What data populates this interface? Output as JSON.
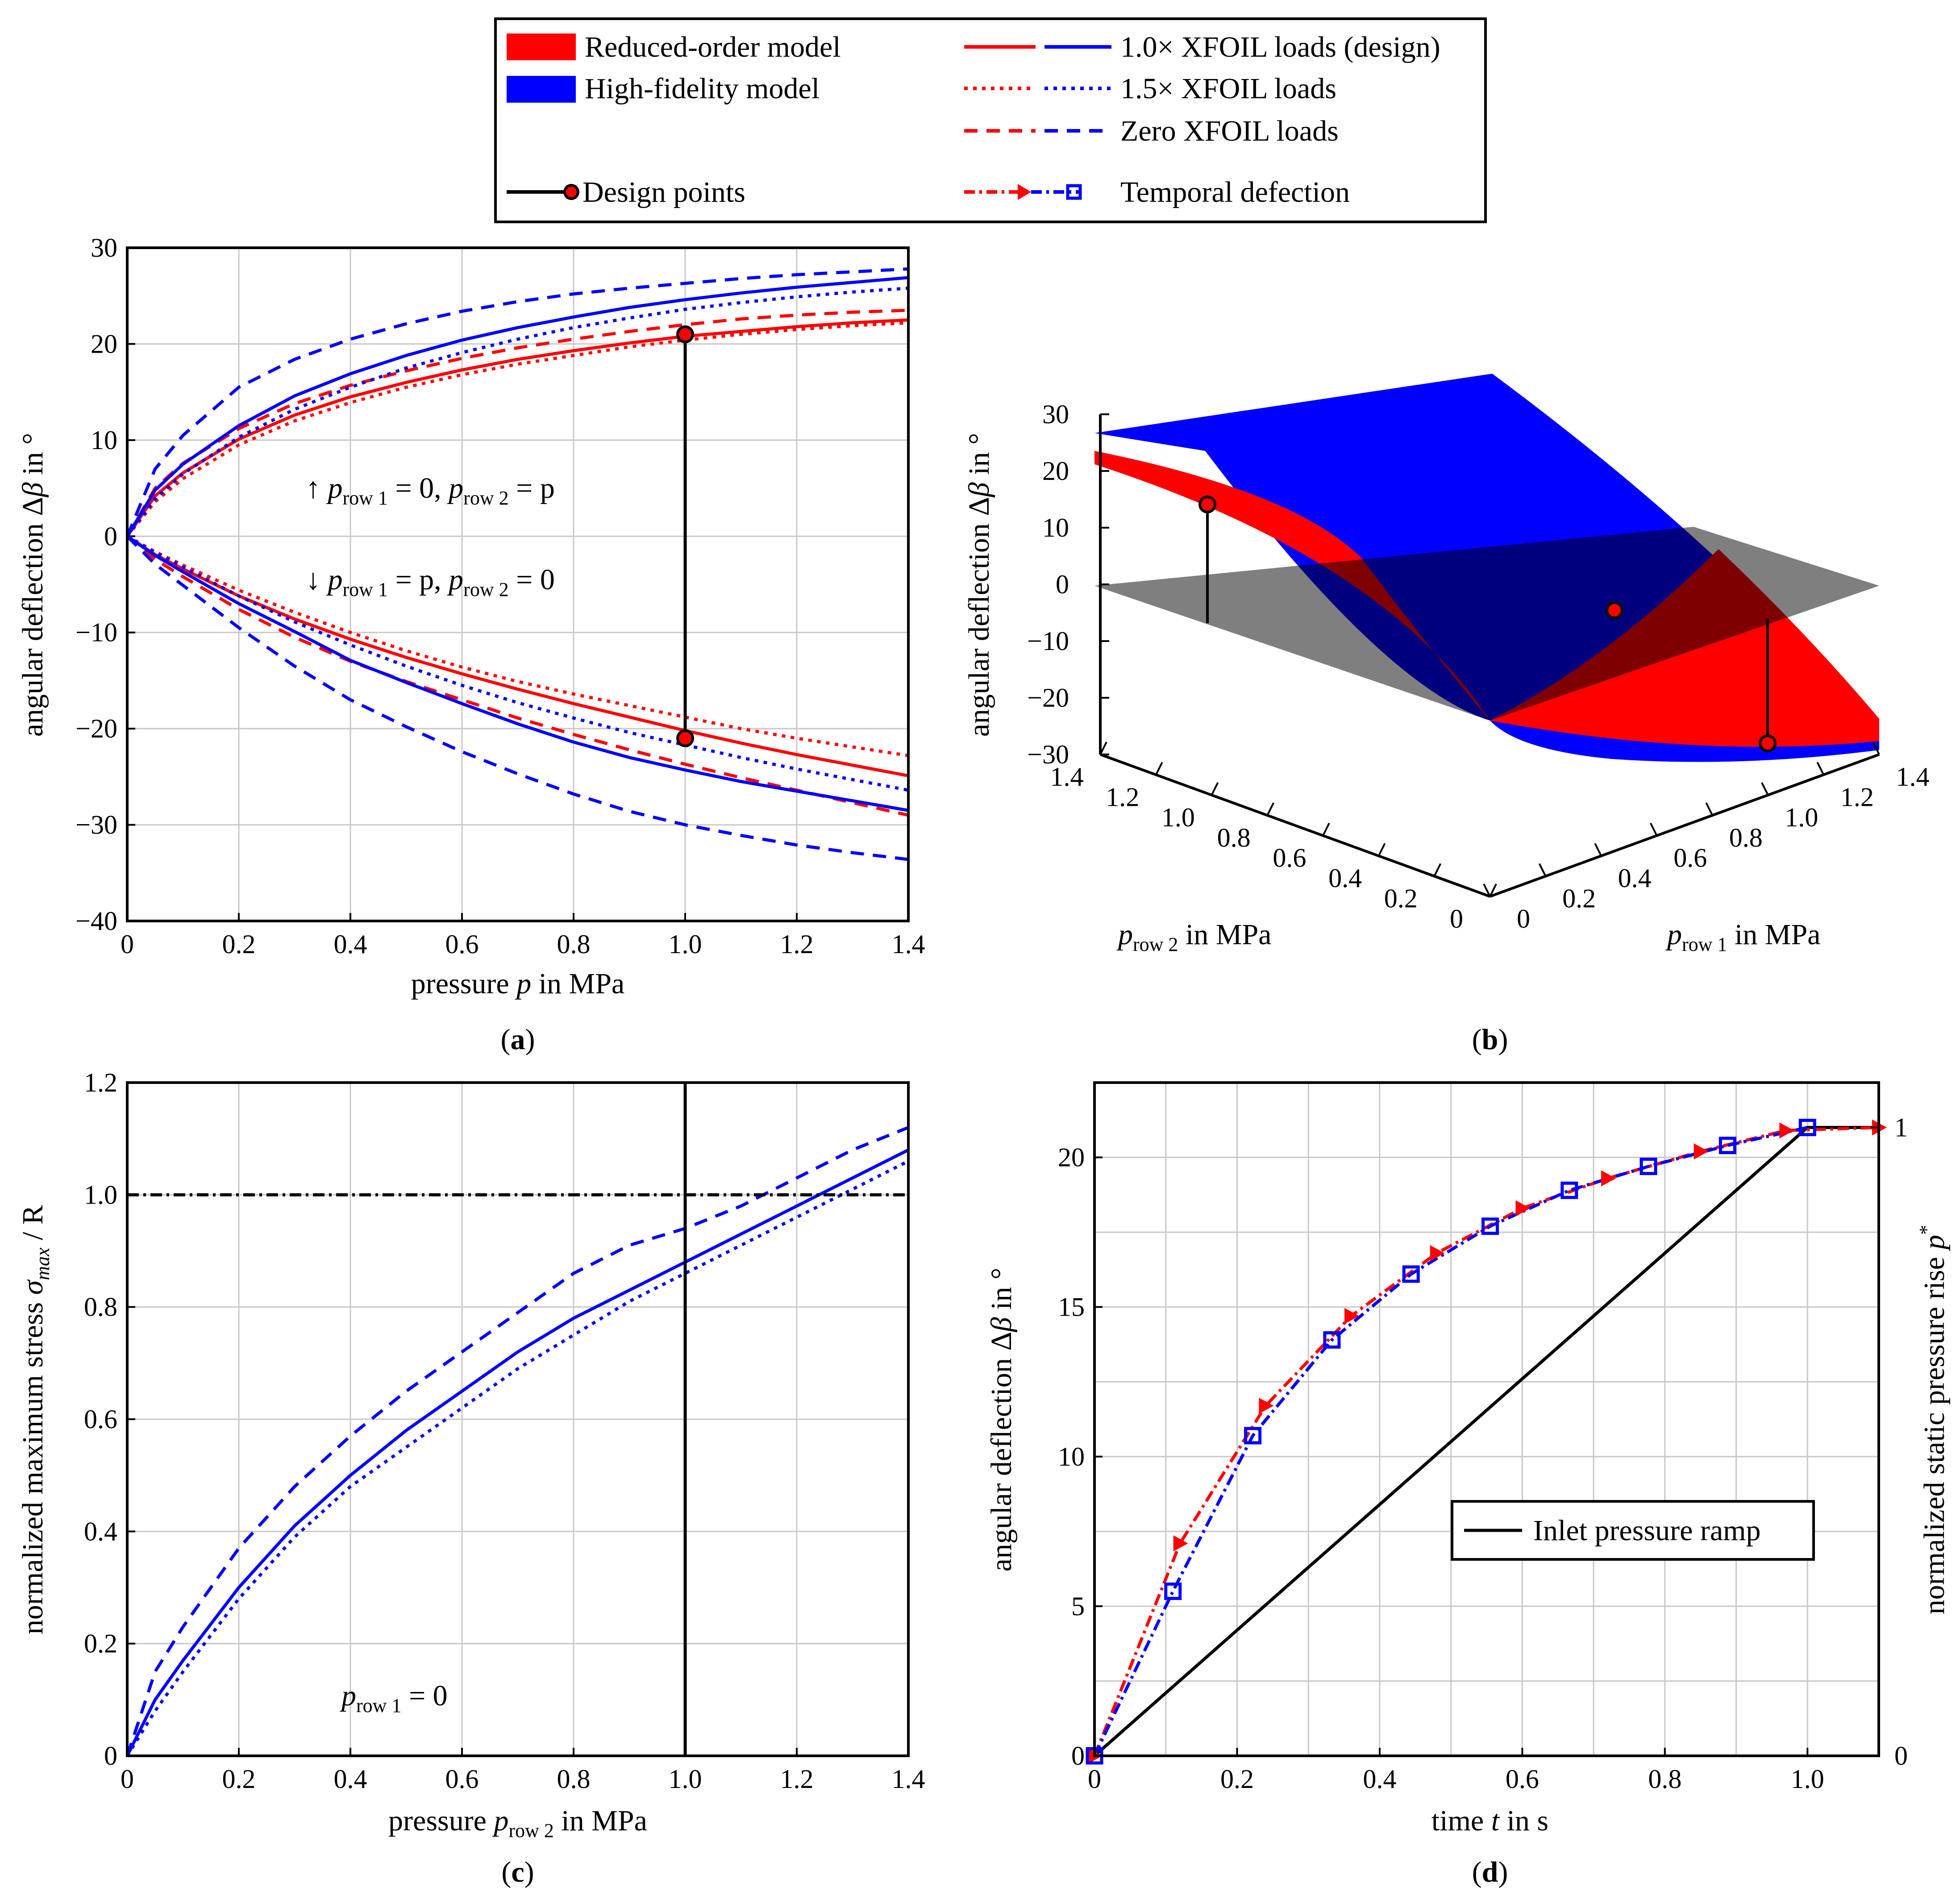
{
  "figure": {
    "colors": {
      "red": "#ff0000",
      "blue": "#0000ff",
      "black": "#000000",
      "gray": "#808080",
      "grid": "#c8c8c8"
    }
  },
  "legend": {
    "reduced_order": "Reduced-order model",
    "high_fidelity": "High-fidelity model",
    "loads_design": "1.0× XFOIL loads (design)",
    "loads_15": "1.5× XFOIL loads",
    "loads_zero": "Zero XFOIL loads",
    "design_points": "Design points",
    "temporal": "Temporal defection"
  },
  "chart_data": [
    {
      "id": "a",
      "panel_label": "a",
      "type": "line",
      "xlabel_main": "pressure ",
      "xlabel_var": "p",
      "xlabel_unit": " in MPa",
      "ylabel_main": "angular deflection Δ",
      "ylabel_var": "β",
      "ylabel_unit": " in °",
      "xlim": [
        0,
        1.4
      ],
      "ylim": [
        -40,
        30
      ],
      "xticks": [
        0,
        0.2,
        0.4,
        0.6,
        0.8,
        1.0,
        1.2,
        1.4
      ],
      "xtick_labels": [
        "0",
        "0.2",
        "0.4",
        "0.6",
        "0.8",
        "1.0",
        "1.2",
        "1.4"
      ],
      "yticks": [
        -40,
        -30,
        -20,
        -10,
        0,
        10,
        20,
        30
      ],
      "ytick_labels": [
        "−40",
        "−30",
        "−20",
        "−10",
        "0",
        "10",
        "20",
        "30"
      ],
      "annotations": {
        "upper": {
          "arrow": "↑",
          "text": "p_row1 = 0,  p_row2 = p"
        },
        "lower": {
          "arrow": "↓",
          "text": "p_row1 = p,  p_row2 = 0"
        },
        "var_p": "p",
        "sub_row1": "row 1",
        "sub_row2": "row 2",
        "eq_zero": " = 0,",
        "eq_p": " = p",
        "eq_p_comma": " = p,",
        "eq_zero_end": " = 0"
      },
      "x": [
        0,
        0.05,
        0.1,
        0.2,
        0.3,
        0.4,
        0.5,
        0.6,
        0.7,
        0.8,
        0.9,
        1.0,
        1.1,
        1.2,
        1.3,
        1.4
      ],
      "series": [
        {
          "name": "ROM design upper",
          "model": "reduced",
          "loads": "design",
          "values": [
            0,
            4.2,
            6.6,
            10.1,
            12.6,
            14.5,
            16.0,
            17.3,
            18.4,
            19.3,
            20.1,
            20.8,
            21.3,
            21.8,
            22.2,
            22.5
          ]
        },
        {
          "name": "ROM 1.5x upper",
          "model": "reduced",
          "loads": "1.5x",
          "values": [
            0,
            3.6,
            6.0,
            9.5,
            12.0,
            13.9,
            15.5,
            16.8,
            17.9,
            18.8,
            19.7,
            20.4,
            21.0,
            21.5,
            21.9,
            22.2
          ]
        },
        {
          "name": "ROM zero upper",
          "model": "reduced",
          "loads": "zero",
          "values": [
            0,
            5.0,
            7.6,
            11.2,
            13.8,
            15.7,
            17.2,
            18.5,
            19.6,
            20.5,
            21.3,
            22.0,
            22.6,
            23.0,
            23.3,
            23.5
          ]
        },
        {
          "name": "HF design upper",
          "model": "high",
          "loads": "design",
          "values": [
            0,
            4.8,
            7.5,
            11.5,
            14.6,
            16.9,
            18.8,
            20.4,
            21.7,
            22.8,
            23.8,
            24.6,
            25.3,
            25.9,
            26.4,
            26.9
          ]
        },
        {
          "name": "HF 1.5x upper",
          "model": "high",
          "loads": "1.5x",
          "values": [
            0,
            3.9,
            6.5,
            10.3,
            13.2,
            15.5,
            17.5,
            19.1,
            20.5,
            21.7,
            22.7,
            23.6,
            24.3,
            24.9,
            25.4,
            25.8
          ]
        },
        {
          "name": "HF zero upper",
          "model": "high",
          "loads": "zero",
          "values": [
            0,
            7.0,
            10.5,
            15.5,
            18.4,
            20.5,
            22.1,
            23.4,
            24.4,
            25.2,
            25.8,
            26.3,
            26.8,
            27.2,
            27.5,
            27.8
          ]
        },
        {
          "name": "ROM design lower",
          "model": "reduced",
          "loads": "design",
          "values": [
            0,
            -1.9,
            -3.4,
            -6.2,
            -8.6,
            -10.7,
            -12.6,
            -14.3,
            -15.9,
            -17.4,
            -18.8,
            -20.2,
            -21.5,
            -22.7,
            -23.8,
            -24.9
          ]
        },
        {
          "name": "ROM 1.5x lower",
          "model": "reduced",
          "loads": "1.5x",
          "values": [
            0,
            -1.6,
            -3.0,
            -5.6,
            -7.9,
            -10.0,
            -11.9,
            -13.6,
            -15.1,
            -16.4,
            -17.6,
            -18.8,
            -20.0,
            -21.0,
            -21.9,
            -22.8
          ]
        },
        {
          "name": "ROM zero lower",
          "model": "reduced",
          "loads": "zero",
          "values": [
            0,
            -2.4,
            -4.2,
            -7.6,
            -10.5,
            -13.0,
            -15.1,
            -17.0,
            -18.9,
            -20.6,
            -22.2,
            -23.7,
            -25.1,
            -26.4,
            -27.7,
            -29.0
          ]
        },
        {
          "name": "HF design lower",
          "model": "high",
          "loads": "design",
          "values": [
            0,
            -2.0,
            -3.7,
            -7.0,
            -9.9,
            -12.9,
            -15.2,
            -17.4,
            -19.5,
            -21.4,
            -23.0,
            -24.3,
            -25.5,
            -26.5,
            -27.5,
            -28.5
          ]
        },
        {
          "name": "HF 1.5x lower",
          "model": "high",
          "loads": "1.5x",
          "values": [
            0,
            -1.7,
            -3.2,
            -6.2,
            -8.9,
            -11.3,
            -13.5,
            -15.5,
            -17.3,
            -18.9,
            -20.4,
            -21.7,
            -23.0,
            -24.2,
            -25.3,
            -26.4
          ]
        },
        {
          "name": "HF zero lower",
          "model": "high",
          "loads": "zero",
          "values": [
            0,
            -2.9,
            -5.1,
            -9.5,
            -13.5,
            -17.0,
            -19.8,
            -22.4,
            -24.7,
            -26.8,
            -28.6,
            -30.0,
            -31.1,
            -32.1,
            -32.9,
            -33.6
          ]
        }
      ],
      "design_points": [
        {
          "x": 1.0,
          "y": 21.0
        },
        {
          "x": 1.0,
          "y": -21.0
        }
      ]
    },
    {
      "id": "b",
      "panel_label": "b",
      "type": "surface",
      "zlabel_main": "angular deflection Δ",
      "zlabel_var": "β",
      "zlabel_unit": " in °",
      "x_label_var": "p",
      "x_label_sub": "row 1",
      "x_label_unit": " in MPa",
      "y_label_var": "p",
      "y_label_sub": "row 2",
      "y_label_unit": " in MPa",
      "zticks": [
        -30,
        -20,
        -10,
        0,
        10,
        20,
        30
      ],
      "ztick_labels": [
        "−30",
        "−20",
        "−10",
        "0",
        "10",
        "20",
        "30"
      ],
      "prow1_ticks": [
        "0",
        "0.2",
        "0.4",
        "0.6",
        "0.8",
        "1.0",
        "1.2",
        "1.4"
      ],
      "prow2_ticks": [
        "0",
        "0.2",
        "0.4",
        "0.6",
        "0.8",
        "1.0",
        "1.2",
        "1.4"
      ],
      "plane": "Δβ = 0",
      "design_points": [
        {
          "prow1": 0,
          "prow2": 1.0,
          "z": 21
        },
        {
          "prow1": 1.0,
          "prow2": 1.0,
          "z": 0
        },
        {
          "prow1": 1.0,
          "prow2": 0,
          "z": -21
        }
      ]
    },
    {
      "id": "c",
      "panel_label": "c",
      "type": "line",
      "xlabel_main": "pressure ",
      "xlabel_var": "p",
      "xlabel_sub": "row 2",
      "xlabel_unit": " in MPa",
      "ylabel_main": "normalized maximum stress ",
      "ylabel_var": "σ",
      "ylabel_sub": "max",
      "ylabel_unit": " / R",
      "xlim": [
        0,
        1.4
      ],
      "ylim": [
        0,
        1.2
      ],
      "xticks": [
        0,
        0.2,
        0.4,
        0.6,
        0.8,
        1.0,
        1.2,
        1.4
      ],
      "xtick_labels": [
        "0",
        "0.2",
        "0.4",
        "0.6",
        "0.8",
        "1.0",
        "1.2",
        "1.4"
      ],
      "yticks": [
        0,
        0.2,
        0.4,
        0.6,
        0.8,
        1.0,
        1.2
      ],
      "ytick_labels": [
        "0",
        "0.2",
        "0.4",
        "0.6",
        "0.8",
        "1.0",
        "1.2"
      ],
      "annotation_var": "p",
      "annotation_sub": "row 1",
      "annotation_eq": " = 0",
      "limit_line": 1.0,
      "design_line_x": 1.0,
      "x": [
        0,
        0.05,
        0.1,
        0.2,
        0.3,
        0.4,
        0.5,
        0.6,
        0.7,
        0.8,
        0.9,
        1.0,
        1.1,
        1.2,
        1.3,
        1.4
      ],
      "series": [
        {
          "name": "HF design",
          "loads": "design",
          "values": [
            0,
            0.1,
            0.17,
            0.3,
            0.41,
            0.5,
            0.58,
            0.65,
            0.72,
            0.78,
            0.83,
            0.88,
            0.93,
            0.98,
            1.03,
            1.08
          ]
        },
        {
          "name": "HF 1.5x",
          "loads": "1.5x",
          "values": [
            0,
            0.08,
            0.15,
            0.28,
            0.39,
            0.48,
            0.55,
            0.62,
            0.69,
            0.75,
            0.81,
            0.86,
            0.91,
            0.96,
            1.01,
            1.06
          ]
        },
        {
          "name": "HF zero",
          "loads": "zero",
          "values": [
            0,
            0.15,
            0.23,
            0.37,
            0.48,
            0.57,
            0.65,
            0.72,
            0.79,
            0.86,
            0.91,
            0.94,
            0.98,
            1.03,
            1.08,
            1.12
          ]
        }
      ]
    },
    {
      "id": "d",
      "panel_label": "d",
      "type": "line",
      "xlabel_main": "time ",
      "xlabel_var": "t",
      "xlabel_unit": " in s",
      "ylabel_main": "angular deflection Δ",
      "ylabel_var": "β",
      "ylabel_unit": " in °",
      "y2label_main": "normalized static pressure rise ",
      "y2label_var": "p",
      "y2label_sup": "*",
      "xlim": [
        0,
        1.1
      ],
      "ylim": [
        0,
        22.5
      ],
      "xticks": [
        0,
        0.2,
        0.4,
        0.6,
        0.8,
        1.0
      ],
      "xtick_labels": [
        "0",
        "0.2",
        "0.4",
        "0.6",
        "0.8",
        "1.0"
      ],
      "yticks": [
        0,
        5,
        10,
        15,
        20
      ],
      "ytick_labels": [
        "0",
        "5",
        "10",
        "15",
        "20"
      ],
      "y2ticks": [
        0,
        1
      ],
      "y2tick_labels": [
        "0",
        "1"
      ],
      "inner_legend": "Inlet pressure ramp",
      "series": [
        {
          "name": "ROM temporal",
          "model": "reduced",
          "x": [
            0,
            0.12,
            0.24,
            0.36,
            0.48,
            0.6,
            0.72,
            0.85,
            0.97,
            1.1
          ],
          "values": [
            0,
            7.1,
            11.7,
            14.7,
            16.8,
            18.3,
            19.3,
            20.2,
            20.9,
            21.0
          ]
        },
        {
          "name": "HF temporal",
          "model": "high",
          "x": [
            0,
            0.11,
            0.222,
            0.333,
            0.444,
            0.555,
            0.666,
            0.777,
            0.888,
            1.0
          ],
          "values": [
            0,
            5.5,
            10.7,
            13.9,
            16.1,
            17.7,
            18.9,
            19.7,
            20.4,
            21.0
          ]
        },
        {
          "name": "Inlet pressure ramp",
          "x": [
            0,
            1.0,
            1.1
          ],
          "values": [
            0,
            1,
            1
          ]
        }
      ]
    }
  ]
}
